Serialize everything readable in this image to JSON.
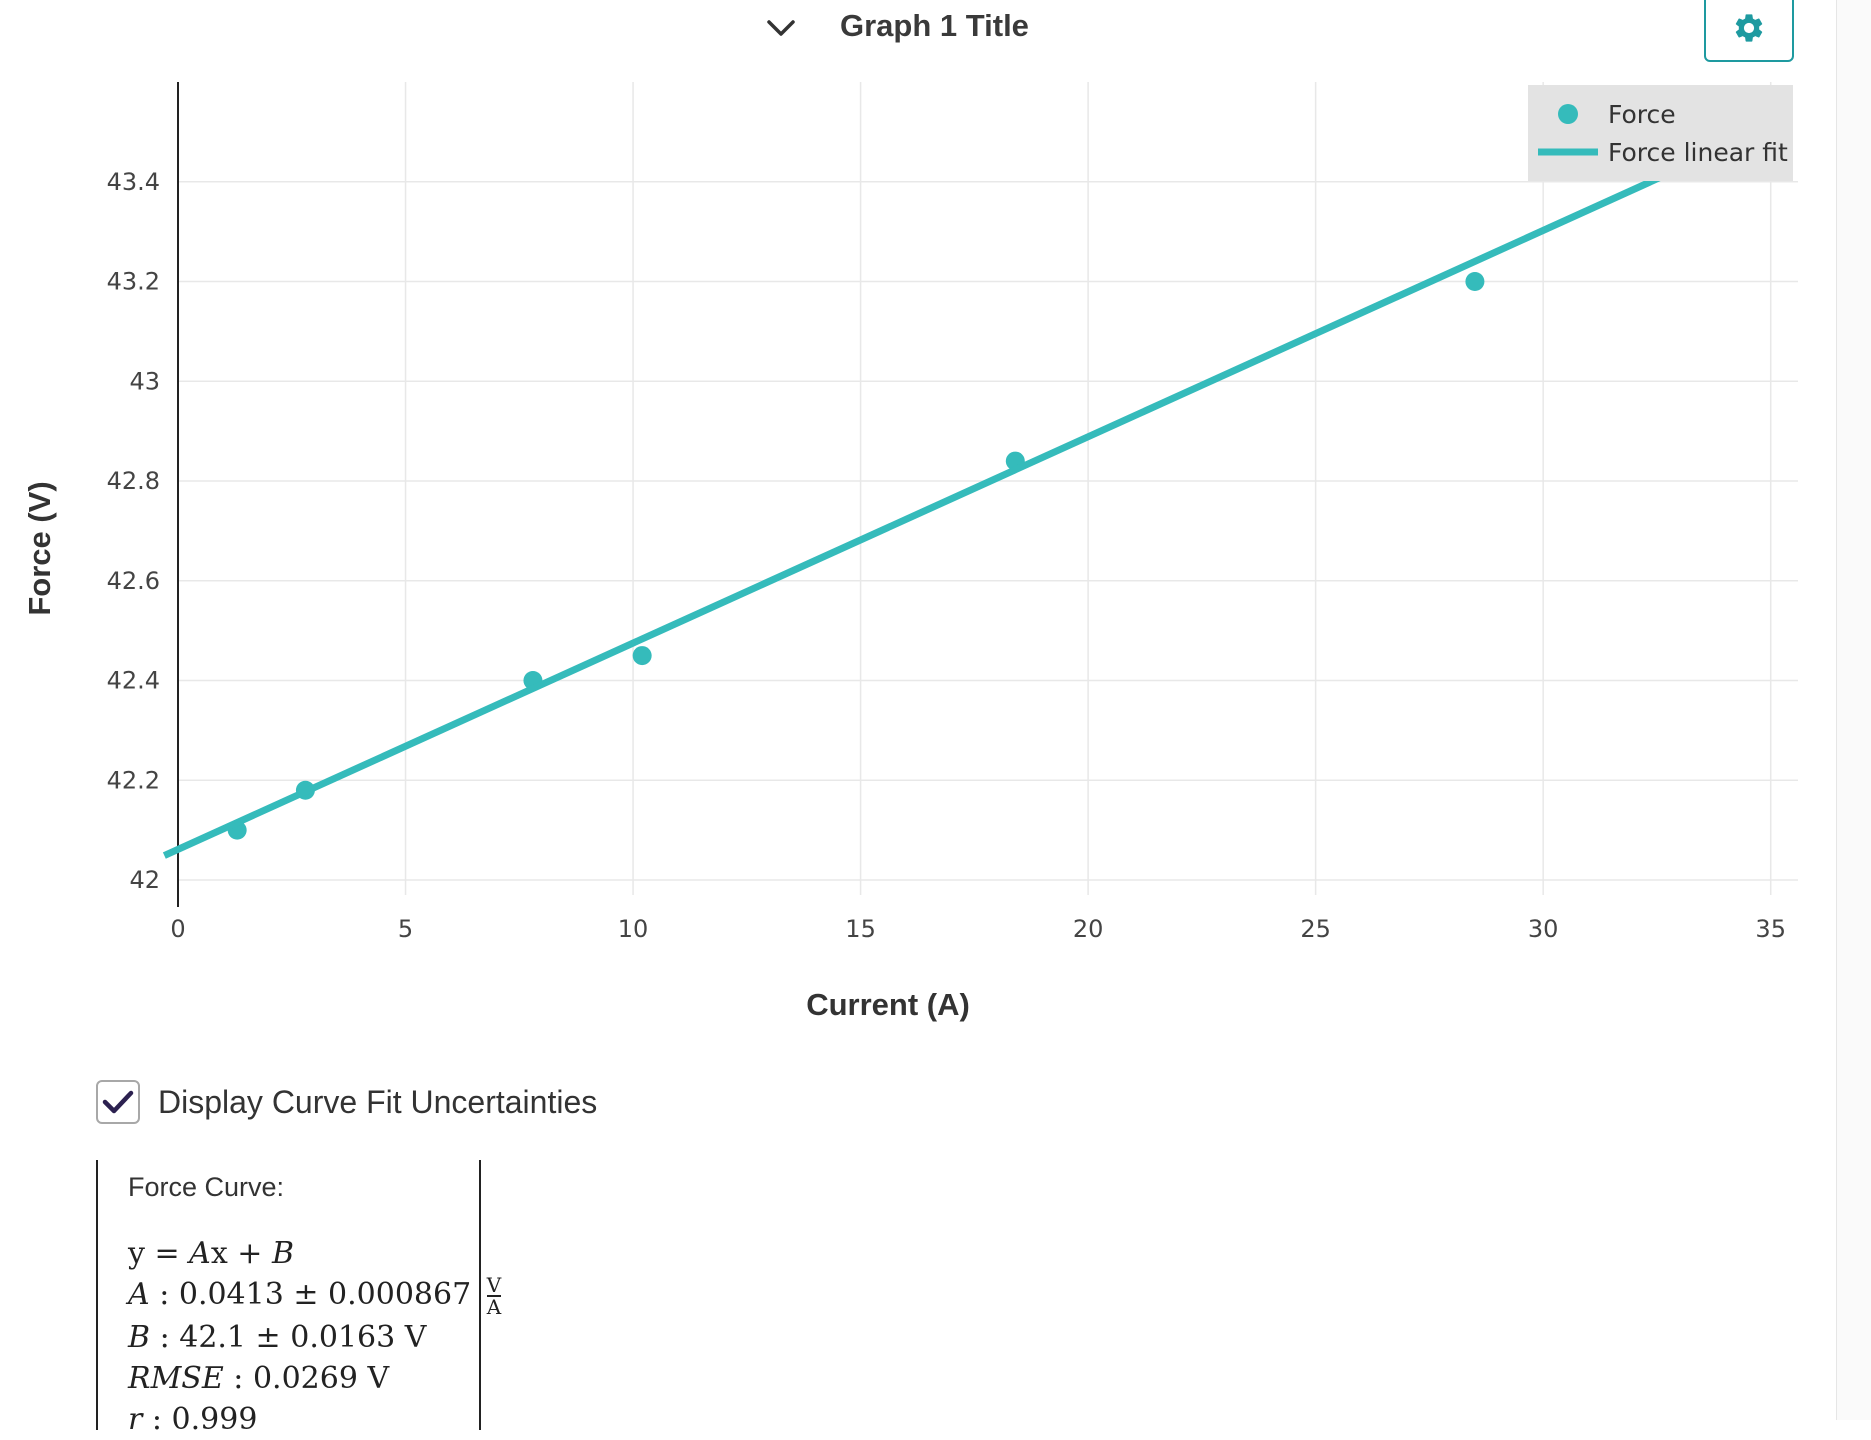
{
  "header": {
    "title": "Graph 1 Title",
    "collapse_icon": "chevron-down-icon",
    "settings_icon": "gear-icon"
  },
  "chart_data": {
    "type": "scatter",
    "xlabel": "Current (A)",
    "ylabel": "Force (V)",
    "xlim": [
      0,
      35.6
    ],
    "ylim": [
      41.97,
      43.6
    ],
    "xticks": [
      0,
      5,
      10,
      15,
      20,
      25,
      30,
      35
    ],
    "yticks": [
      42,
      42.2,
      42.4,
      42.6,
      42.8,
      43,
      43.2,
      43.4
    ],
    "ytick_labels": [
      "42",
      "42.2",
      "42.4",
      "42.6",
      "42.8",
      "43",
      "43.2",
      "43.4"
    ],
    "grid": true,
    "legend_position": "top-right",
    "series": [
      {
        "name": "Force",
        "kind": "markers",
        "color": "#35bbbb",
        "x": [
          1.3,
          2.8,
          7.8,
          10.2,
          18.4,
          28.5
        ],
        "y": [
          42.1,
          42.18,
          42.4,
          42.45,
          42.84,
          43.2
        ]
      },
      {
        "name": "Force linear fit",
        "kind": "line",
        "color": "#35bbbb",
        "x": [
          -0.3,
          33.4
        ],
        "y": [
          42.049,
          43.443
        ]
      }
    ]
  },
  "fit_controls": {
    "checkbox_label": "Display Curve Fit Uncertainties",
    "checked": true,
    "check_icon": "checkmark-icon",
    "check_color": "#2c2150"
  },
  "fit_panel": {
    "heading": "Force Curve:",
    "equation": {
      "lhs": "y",
      "eq": " = ",
      "A": "A",
      "x": "x",
      "plus": " + ",
      "B": "B"
    },
    "A_row": {
      "name": "A",
      "value": " : 0.0413 ± 0.000867 ",
      "unit_num": "V",
      "unit_den": "A"
    },
    "B_row": {
      "name": "B",
      "value": " : 42.1 ± 0.0163 V"
    },
    "rmse_row": {
      "name": "RMSE",
      "value": " : 0.0269 V"
    },
    "r_row": {
      "name": "r",
      "value": " : 0.999"
    }
  }
}
